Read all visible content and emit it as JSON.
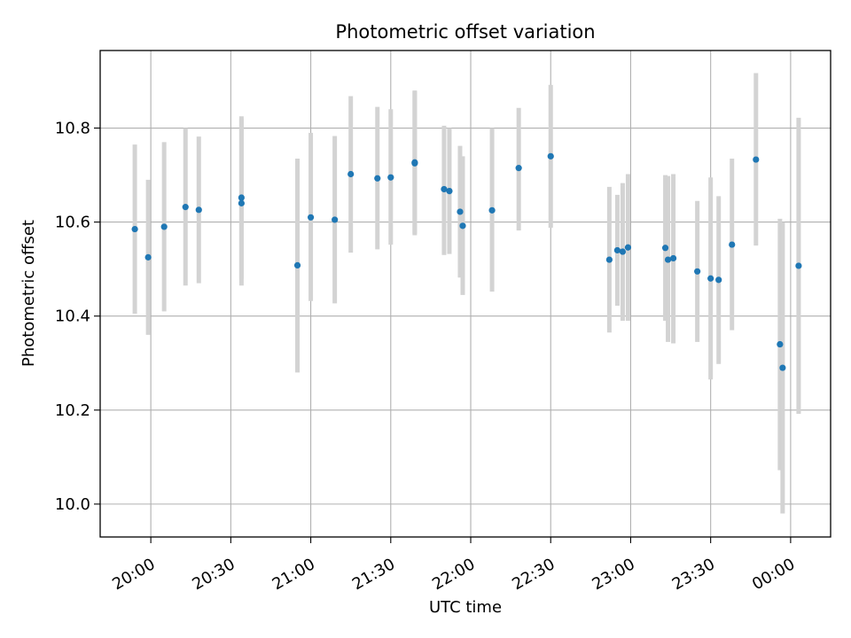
{
  "chart_data": {
    "type": "scatter",
    "title": "Photometric offset variation",
    "xlabel": "UTC time",
    "ylabel": "Photometric offset",
    "grid": true,
    "marker_color": "#1f77b4",
    "errorbar_color": "#d3d3d3",
    "xlim": [
      "19:41",
      "00:15"
    ],
    "ylim": [
      9.93,
      10.965
    ],
    "xticks": [
      "20:00",
      "20:30",
      "21:00",
      "21:30",
      "22:00",
      "22:30",
      "23:00",
      "23:30",
      "00:00"
    ],
    "yticks": [
      "10.0",
      "10.2",
      "10.4",
      "10.6",
      "10.8"
    ],
    "series": [
      {
        "points": [
          {
            "x": "19:54",
            "y": 10.585,
            "ylo": 10.405,
            "yhi": 10.765
          },
          {
            "x": "19:59",
            "y": 10.525,
            "ylo": 10.36,
            "yhi": 10.69
          },
          {
            "x": "20:05",
            "y": 10.59,
            "ylo": 10.41,
            "yhi": 10.77
          },
          {
            "x": "20:13",
            "y": 10.632,
            "ylo": 10.465,
            "yhi": 10.8
          },
          {
            "x": "20:18",
            "y": 10.626,
            "ylo": 10.47,
            "yhi": 10.782
          },
          {
            "x": "20:34",
            "y": 10.652,
            "ylo": 10.48,
            "yhi": 10.825
          },
          {
            "x": "20:34",
            "y": 10.64,
            "ylo": 10.465,
            "yhi": 10.82
          },
          {
            "x": "20:55",
            "y": 10.508,
            "ylo": 10.28,
            "yhi": 10.735
          },
          {
            "x": "21:00",
            "y": 10.61,
            "ylo": 10.432,
            "yhi": 10.79
          },
          {
            "x": "21:09",
            "y": 10.605,
            "ylo": 10.427,
            "yhi": 10.783
          },
          {
            "x": "21:15",
            "y": 10.702,
            "ylo": 10.535,
            "yhi": 10.868
          },
          {
            "x": "21:25",
            "y": 10.693,
            "ylo": 10.542,
            "yhi": 10.845
          },
          {
            "x": "21:30",
            "y": 10.695,
            "ylo": 10.552,
            "yhi": 10.84
          },
          {
            "x": "21:39",
            "y": 10.725,
            "ylo": 10.572,
            "yhi": 10.878
          },
          {
            "x": "21:39",
            "y": 10.727,
            "ylo": 10.575,
            "yhi": 10.88
          },
          {
            "x": "21:50",
            "y": 10.67,
            "ylo": 10.53,
            "yhi": 10.805
          },
          {
            "x": "21:52",
            "y": 10.666,
            "ylo": 10.532,
            "yhi": 10.8
          },
          {
            "x": "21:56",
            "y": 10.622,
            "ylo": 10.482,
            "yhi": 10.762
          },
          {
            "x": "21:57",
            "y": 10.592,
            "ylo": 10.445,
            "yhi": 10.74
          },
          {
            "x": "22:08",
            "y": 10.625,
            "ylo": 10.452,
            "yhi": 10.8
          },
          {
            "x": "22:18",
            "y": 10.715,
            "ylo": 10.582,
            "yhi": 10.843
          },
          {
            "x": "22:30",
            "y": 10.74,
            "ylo": 10.588,
            "yhi": 10.892
          },
          {
            "x": "22:52",
            "y": 10.52,
            "ylo": 10.365,
            "yhi": 10.675
          },
          {
            "x": "22:55",
            "y": 10.54,
            "ylo": 10.422,
            "yhi": 10.658
          },
          {
            "x": "22:57",
            "y": 10.537,
            "ylo": 10.39,
            "yhi": 10.683
          },
          {
            "x": "22:59",
            "y": 10.546,
            "ylo": 10.39,
            "yhi": 10.702
          },
          {
            "x": "23:13",
            "y": 10.545,
            "ylo": 10.39,
            "yhi": 10.7
          },
          {
            "x": "23:14",
            "y": 10.52,
            "ylo": 10.345,
            "yhi": 10.698
          },
          {
            "x": "23:16",
            "y": 10.523,
            "ylo": 10.342,
            "yhi": 10.702
          },
          {
            "x": "23:25",
            "y": 10.495,
            "ylo": 10.345,
            "yhi": 10.645
          },
          {
            "x": "23:30",
            "y": 10.48,
            "ylo": 10.265,
            "yhi": 10.695
          },
          {
            "x": "23:33",
            "y": 10.477,
            "ylo": 10.298,
            "yhi": 10.655
          },
          {
            "x": "23:38",
            "y": 10.552,
            "ylo": 10.37,
            "yhi": 10.735
          },
          {
            "x": "23:47",
            "y": 10.733,
            "ylo": 10.55,
            "yhi": 10.917
          },
          {
            "x": "23:56",
            "y": 10.34,
            "ylo": 10.072,
            "yhi": 10.607
          },
          {
            "x": "23:57",
            "y": 10.29,
            "ylo": 9.98,
            "yhi": 10.6
          },
          {
            "x": "00:03",
            "y": 10.507,
            "ylo": 10.192,
            "yhi": 10.822
          }
        ]
      }
    ]
  }
}
